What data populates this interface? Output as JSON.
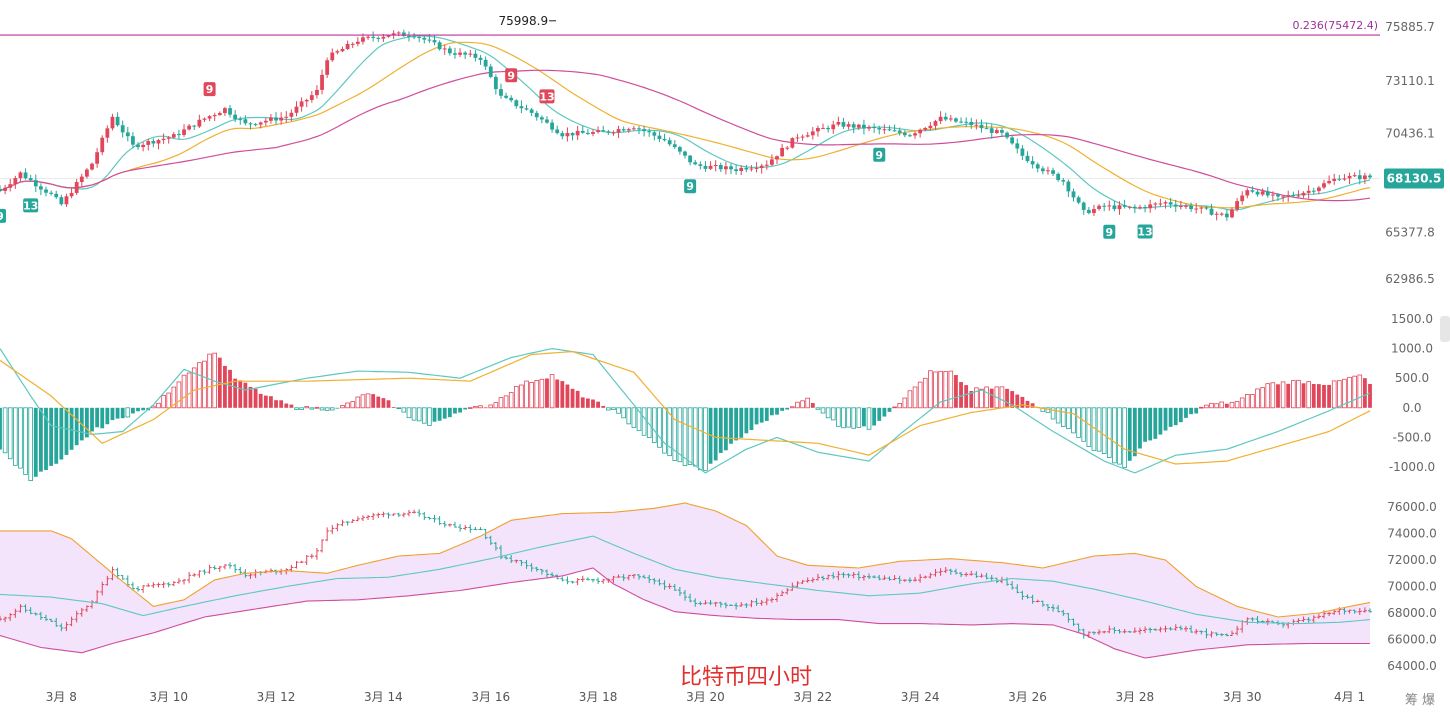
{
  "caption": "比特币四小时",
  "watermark": "筹 爆",
  "colors": {
    "up": "#e0475a",
    "down": "#26a69a",
    "ma_fast": "#5ec8c0",
    "ma_mid": "#f0b030",
    "ma_slow": "#d04d9a",
    "fib": "#c0309a",
    "band_fill": "#f3e4fb",
    "band_upper": "#f0a030",
    "band_lower": "#d04d9a",
    "macd_dif": "#5ec8c0",
    "macd_dea": "#f0b030"
  },
  "chart_data": [
    {
      "type": "candlestick",
      "panel": "price",
      "y_ticks": [
        "75885.7",
        "73110.1",
        "70436.1",
        "68130.5",
        "65377.8",
        "62986.5"
      ],
      "y_values": [
        75885.7,
        73110.1,
        70436.1,
        68130.5,
        65377.8,
        62986.5
      ],
      "current_price": "68130.5",
      "high_annotation": "75998.9",
      "fib_level": {
        "label": "0.236(75472.4)",
        "value": 75472.4
      },
      "x_ticks": [
        "3月 8",
        "3月 10",
        "3月 12",
        "3月 14",
        "3月 16",
        "3月 18",
        "3月 20",
        "3月 22",
        "3月 24",
        "3月 26",
        "3月 28",
        "3月 30",
        "4月 1"
      ],
      "close_anchors": [
        [
          0,
          67500
        ],
        [
          4,
          68400
        ],
        [
          10,
          67300
        ],
        [
          12,
          66800
        ],
        [
          18,
          68900
        ],
        [
          22,
          71300
        ],
        [
          26,
          69800
        ],
        [
          34,
          70300
        ],
        [
          40,
          71200
        ],
        [
          44,
          71700
        ],
        [
          48,
          70900
        ],
        [
          56,
          71300
        ],
        [
          62,
          72600
        ],
        [
          64,
          74300
        ],
        [
          70,
          75200
        ],
        [
          76,
          75500
        ],
        [
          81,
          75500
        ],
        [
          88,
          74600
        ],
        [
          94,
          74300
        ],
        [
          98,
          72300
        ],
        [
          104,
          71500
        ],
        [
          110,
          70400
        ],
        [
          118,
          70500
        ],
        [
          124,
          70800
        ],
        [
          130,
          70100
        ],
        [
          136,
          68800
        ],
        [
          144,
          68600
        ],
        [
          150,
          68900
        ],
        [
          156,
          70300
        ],
        [
          164,
          70900
        ],
        [
          170,
          70700
        ],
        [
          178,
          70400
        ],
        [
          184,
          71200
        ],
        [
          190,
          70900
        ],
        [
          196,
          70400
        ],
        [
          200,
          69300
        ],
        [
          204,
          68600
        ],
        [
          208,
          68000
        ],
        [
          212,
          66400
        ],
        [
          216,
          66700
        ],
        [
          222,
          66600
        ],
        [
          228,
          66900
        ],
        [
          234,
          66600
        ],
        [
          240,
          66200
        ],
        [
          244,
          67600
        ],
        [
          250,
          67100
        ],
        [
          256,
          67500
        ],
        [
          262,
          68200
        ],
        [
          268,
          68200
        ]
      ],
      "td_markers": [
        {
          "label": "9",
          "color": "down",
          "bar": 0,
          "below": true
        },
        {
          "label": "13",
          "color": "down",
          "bar": 6,
          "below": true
        },
        {
          "label": "9",
          "color": "up",
          "bar": 41,
          "below": false
        },
        {
          "label": "9",
          "color": "up",
          "bar": 100,
          "below": false
        },
        {
          "label": "13",
          "color": "up",
          "bar": 107,
          "below": false
        },
        {
          "label": "9",
          "color": "down",
          "bar": 135,
          "below": true
        },
        {
          "label": "9",
          "color": "down",
          "bar": 172,
          "below": true
        },
        {
          "label": "9",
          "color": "down",
          "bar": 217,
          "below": true
        },
        {
          "label": "13",
          "color": "down",
          "bar": 224,
          "below": true
        }
      ]
    },
    {
      "type": "bar",
      "panel": "macd",
      "y_ticks": [
        "1500.0",
        "1000.0",
        "500.0",
        "0.0",
        "-500.0",
        "-1000.0"
      ],
      "y_values": [
        1500,
        1000,
        500,
        0,
        -500,
        -1000
      ],
      "histogram_anchors": [
        [
          0,
          -700
        ],
        [
          6,
          -1200
        ],
        [
          12,
          -900
        ],
        [
          18,
          -400
        ],
        [
          24,
          -150
        ],
        [
          30,
          0
        ],
        [
          36,
          550
        ],
        [
          42,
          950
        ],
        [
          46,
          500
        ],
        [
          52,
          200
        ],
        [
          58,
          0
        ],
        [
          66,
          -20
        ],
        [
          72,
          250
        ],
        [
          76,
          100
        ],
        [
          80,
          -150
        ],
        [
          84,
          -300
        ],
        [
          90,
          -50
        ],
        [
          96,
          50
        ],
        [
          102,
          400
        ],
        [
          108,
          550
        ],
        [
          114,
          200
        ],
        [
          120,
          -50
        ],
        [
          126,
          -450
        ],
        [
          132,
          -900
        ],
        [
          138,
          -1050
        ],
        [
          142,
          -700
        ],
        [
          148,
          -300
        ],
        [
          154,
          0
        ],
        [
          158,
          150
        ],
        [
          164,
          -300
        ],
        [
          170,
          -350
        ],
        [
          176,
          100
        ],
        [
          182,
          600
        ],
        [
          186,
          600
        ],
        [
          190,
          300
        ],
        [
          196,
          350
        ],
        [
          202,
          100
        ],
        [
          208,
          -300
        ],
        [
          214,
          -700
        ],
        [
          220,
          -1000
        ],
        [
          224,
          -600
        ],
        [
          230,
          -300
        ],
        [
          236,
          50
        ],
        [
          242,
          100
        ],
        [
          248,
          400
        ],
        [
          254,
          450
        ],
        [
          260,
          400
        ],
        [
          266,
          550
        ],
        [
          268,
          400
        ]
      ],
      "dif_anchors": [
        [
          0,
          1000
        ],
        [
          6,
          200
        ],
        [
          10,
          -300
        ],
        [
          18,
          -450
        ],
        [
          24,
          -400
        ],
        [
          30,
          50
        ],
        [
          36,
          650
        ],
        [
          42,
          450
        ],
        [
          48,
          300
        ],
        [
          60,
          500
        ],
        [
          70,
          620
        ],
        [
          80,
          600
        ],
        [
          90,
          500
        ],
        [
          100,
          850
        ],
        [
          108,
          1000
        ],
        [
          116,
          900
        ],
        [
          124,
          50
        ],
        [
          130,
          -600
        ],
        [
          138,
          -1100
        ],
        [
          146,
          -700
        ],
        [
          152,
          -500
        ],
        [
          160,
          -750
        ],
        [
          170,
          -900
        ],
        [
          176,
          -450
        ],
        [
          184,
          100
        ],
        [
          192,
          300
        ],
        [
          198,
          50
        ],
        [
          206,
          -400
        ],
        [
          216,
          -900
        ],
        [
          222,
          -1100
        ],
        [
          230,
          -800
        ],
        [
          240,
          -700
        ],
        [
          250,
          -400
        ],
        [
          260,
          -50
        ],
        [
          268,
          250
        ]
      ],
      "dea_anchors": [
        [
          0,
          800
        ],
        [
          10,
          200
        ],
        [
          20,
          -600
        ],
        [
          30,
          -200
        ],
        [
          38,
          300
        ],
        [
          46,
          450
        ],
        [
          60,
          450
        ],
        [
          80,
          500
        ],
        [
          92,
          450
        ],
        [
          104,
          900
        ],
        [
          112,
          950
        ],
        [
          124,
          600
        ],
        [
          132,
          -200
        ],
        [
          140,
          -500
        ],
        [
          150,
          -550
        ],
        [
          160,
          -600
        ],
        [
          170,
          -800
        ],
        [
          180,
          -300
        ],
        [
          190,
          -80
        ],
        [
          200,
          50
        ],
        [
          210,
          -100
        ],
        [
          220,
          -700
        ],
        [
          230,
          -950
        ],
        [
          240,
          -900
        ],
        [
          252,
          -600
        ],
        [
          260,
          -400
        ],
        [
          268,
          -50
        ]
      ]
    },
    {
      "type": "band",
      "panel": "boll",
      "y_ticks": [
        "76000.0",
        "74000.0",
        "72000.0",
        "70000.0",
        "68000.0",
        "66000.0",
        "64000.0"
      ],
      "y_values": [
        76000,
        74000,
        72000,
        70000,
        68000,
        66000,
        64000
      ],
      "upper_anchors": [
        [
          0,
          74200
        ],
        [
          10,
          74200
        ],
        [
          14,
          73600
        ],
        [
          22,
          71000
        ],
        [
          30,
          68500
        ],
        [
          36,
          69000
        ],
        [
          42,
          70500
        ],
        [
          48,
          71000
        ],
        [
          56,
          71200
        ],
        [
          64,
          71000
        ],
        [
          70,
          71600
        ],
        [
          78,
          72300
        ],
        [
          86,
          72500
        ],
        [
          94,
          73800
        ],
        [
          100,
          75000
        ],
        [
          110,
          75500
        ],
        [
          120,
          75600
        ],
        [
          128,
          75900
        ],
        [
          134,
          76300
        ],
        [
          140,
          75700
        ],
        [
          146,
          74600
        ],
        [
          152,
          72300
        ],
        [
          158,
          71600
        ],
        [
          168,
          71400
        ],
        [
          176,
          71900
        ],
        [
          186,
          72100
        ],
        [
          196,
          71800
        ],
        [
          204,
          71400
        ],
        [
          214,
          72300
        ],
        [
          222,
          72500
        ],
        [
          228,
          72000
        ],
        [
          234,
          70000
        ],
        [
          242,
          68500
        ],
        [
          250,
          67700
        ],
        [
          258,
          68000
        ],
        [
          264,
          68500
        ],
        [
          268,
          68800
        ]
      ],
      "middle_anchors": [
        [
          0,
          69400
        ],
        [
          10,
          69200
        ],
        [
          20,
          68700
        ],
        [
          28,
          67800
        ],
        [
          36,
          68500
        ],
        [
          46,
          69300
        ],
        [
          56,
          70000
        ],
        [
          66,
          70600
        ],
        [
          76,
          70700
        ],
        [
          86,
          71300
        ],
        [
          96,
          72100
        ],
        [
          106,
          73000
        ],
        [
          116,
          73800
        ],
        [
          124,
          72500
        ],
        [
          132,
          71300
        ],
        [
          140,
          70700
        ],
        [
          150,
          70200
        ],
        [
          160,
          69700
        ],
        [
          170,
          69300
        ],
        [
          180,
          69500
        ],
        [
          190,
          70200
        ],
        [
          198,
          70600
        ],
        [
          206,
          70400
        ],
        [
          214,
          69800
        ],
        [
          224,
          68900
        ],
        [
          234,
          67900
        ],
        [
          244,
          67300
        ],
        [
          254,
          67200
        ],
        [
          262,
          67300
        ],
        [
          268,
          67500
        ]
      ],
      "lower_anchors": [
        [
          0,
          66300
        ],
        [
          8,
          65400
        ],
        [
          16,
          65000
        ],
        [
          22,
          65700
        ],
        [
          30,
          66500
        ],
        [
          40,
          67700
        ],
        [
          50,
          68300
        ],
        [
          60,
          68900
        ],
        [
          70,
          69000
        ],
        [
          80,
          69300
        ],
        [
          90,
          69700
        ],
        [
          100,
          70300
        ],
        [
          110,
          70800
        ],
        [
          116,
          71400
        ],
        [
          120,
          70200
        ],
        [
          126,
          69000
        ],
        [
          132,
          68100
        ],
        [
          140,
          67800
        ],
        [
          148,
          67600
        ],
        [
          156,
          67500
        ],
        [
          164,
          67500
        ],
        [
          172,
          67200
        ],
        [
          180,
          67200
        ],
        [
          190,
          67100
        ],
        [
          198,
          67200
        ],
        [
          206,
          67100
        ],
        [
          212,
          66400
        ],
        [
          218,
          65300
        ],
        [
          224,
          64600
        ],
        [
          234,
          65200
        ],
        [
          244,
          65600
        ],
        [
          256,
          65700
        ],
        [
          268,
          65700
        ]
      ]
    }
  ]
}
